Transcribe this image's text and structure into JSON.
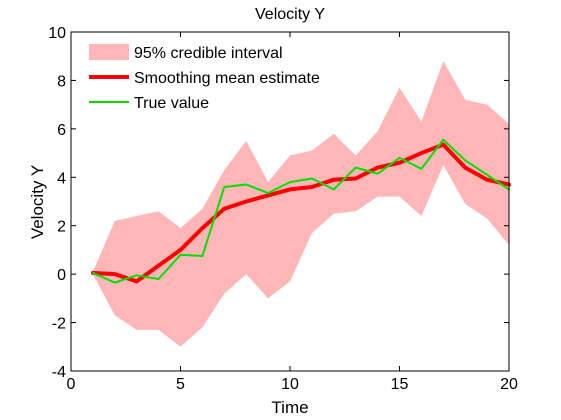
{
  "chart_data": {
    "type": "line",
    "title": "Velocity Y",
    "xlabel": "Time",
    "ylabel": "Velocity Y",
    "xlim": [
      0,
      20
    ],
    "ylim": [
      -4,
      10
    ],
    "xticks": [
      0,
      5,
      10,
      15,
      20
    ],
    "yticks": [
      -4,
      -2,
      0,
      2,
      4,
      6,
      8,
      10
    ],
    "grid": false,
    "legend_placement": "top-left",
    "x": [
      1,
      2,
      3,
      4,
      5,
      6,
      7,
      8,
      9,
      10,
      11,
      12,
      13,
      14,
      15,
      16,
      17,
      18,
      19,
      20
    ],
    "series": [
      {
        "name": "95% credible interval",
        "kind": "band",
        "color": "#ffb6b6",
        "upper": [
          0.1,
          2.2,
          2.4,
          2.6,
          1.9,
          2.7,
          4.3,
          5.5,
          3.8,
          4.9,
          5.1,
          5.8,
          4.9,
          5.9,
          7.7,
          6.3,
          8.8,
          7.2,
          7.0,
          6.2
        ],
        "lower": [
          0.0,
          -1.7,
          -2.3,
          -2.3,
          -3.0,
          -2.2,
          -0.8,
          0.0,
          -1.0,
          -0.3,
          1.7,
          2.5,
          2.6,
          3.2,
          3.2,
          2.4,
          4.5,
          2.9,
          2.3,
          1.2
        ]
      },
      {
        "name": "Smoothing mean estimate",
        "kind": "line",
        "color": "#ff0000",
        "width": 4,
        "values": [
          0.05,
          0.0,
          -0.3,
          0.35,
          1.0,
          1.9,
          2.7,
          3.0,
          3.25,
          3.5,
          3.6,
          3.9,
          3.95,
          4.4,
          4.6,
          5.0,
          5.35,
          4.4,
          3.9,
          3.7
        ]
      },
      {
        "name": "True value",
        "kind": "line",
        "color": "#00e000",
        "width": 2,
        "values": [
          0.05,
          -0.35,
          -0.05,
          -0.2,
          0.8,
          0.75,
          3.6,
          3.7,
          3.35,
          3.8,
          3.95,
          3.5,
          4.4,
          4.15,
          4.8,
          4.35,
          5.55,
          4.7,
          4.1,
          3.5
        ]
      }
    ]
  }
}
